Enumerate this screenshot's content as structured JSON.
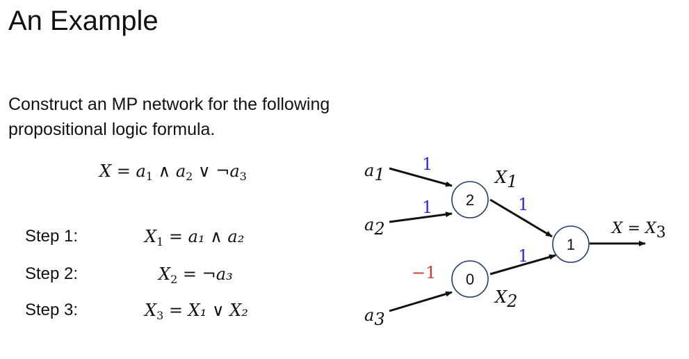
{
  "title": "An Example",
  "intro": "Construct an MP network for the following propositional logic formula.",
  "formula": {
    "lhs": "X",
    "eq": "=",
    "t1": "a",
    "t1_sub": "1",
    "and": "∧",
    "t2": "a",
    "t2_sub": "2",
    "or": "∨",
    "not": "¬",
    "t3": "a",
    "t3_sub": "3"
  },
  "steps": [
    {
      "label": "Step 1:",
      "lhs": "X",
      "lhs_sub": "1",
      "rhs": "= a₁ ∧ a₂"
    },
    {
      "label": "Step 2:",
      "lhs": "X",
      "lhs_sub": "2",
      "rhs": "= ¬a₃"
    },
    {
      "label": "Step 3:",
      "lhs": "X",
      "lhs_sub": "3",
      "rhs": "= X₁ ∨ X₂"
    }
  ],
  "network": {
    "inputs": [
      {
        "name": "a",
        "sub": "1"
      },
      {
        "name": "a",
        "sub": "2"
      },
      {
        "name": "a",
        "sub": "3"
      }
    ],
    "neurons": [
      {
        "threshold": "2",
        "label": "X",
        "label_sub": "1"
      },
      {
        "threshold": "0",
        "label": "X",
        "label_sub": "2"
      },
      {
        "threshold": "1"
      }
    ],
    "weights": [
      "1",
      "1",
      "−1",
      "1",
      "1"
    ],
    "output": "X = X",
    "output_sub": "3"
  },
  "colors": {
    "positive_weight": "#2a2ad6",
    "negative_weight": "#d23a2a",
    "edge": "#111111"
  }
}
